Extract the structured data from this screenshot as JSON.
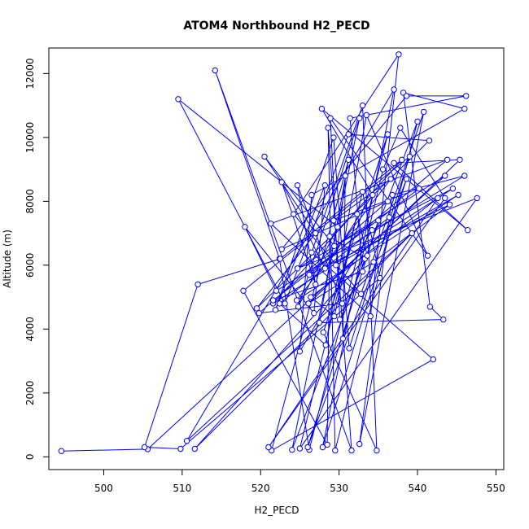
{
  "chart_data": {
    "type": "scatter",
    "title": "ATOM4 Northbound H2_PECD",
    "xlabel": "H2_PECD",
    "ylabel": "Altitude (m)",
    "xlim": [
      493,
      551
    ],
    "ylim": [
      -400,
      12800
    ],
    "x_ticks": [
      500,
      510,
      520,
      530,
      540,
      550
    ],
    "y_ticks": [
      0,
      2000,
      4000,
      6000,
      8000,
      10000,
      12000
    ],
    "grid": false,
    "legend": "none",
    "series": [
      {
        "color": "#0000ff",
        "marker": "open-circle",
        "connected": true,
        "points": [
          [
            494.6,
            180
          ],
          [
            505.6,
            240
          ],
          [
            543.5,
            8800
          ],
          [
            529.4,
            6600
          ],
          [
            520.5,
            9400
          ],
          [
            527.0,
            7000
          ],
          [
            519.5,
            4650
          ],
          [
            541.5,
            9900
          ],
          [
            531.2,
            10100
          ],
          [
            523.1,
            4800
          ],
          [
            509.5,
            11200
          ],
          [
            529.8,
            7200
          ],
          [
            524.8,
            4700
          ],
          [
            532.6,
            10600
          ],
          [
            524.0,
            220
          ],
          [
            540.0,
            10500
          ],
          [
            529.5,
            200
          ],
          [
            528.6,
            10300
          ],
          [
            531.6,
            200
          ],
          [
            514.2,
            12100
          ],
          [
            522.4,
            6200
          ],
          [
            526.2,
            220
          ],
          [
            536.2,
            10100
          ],
          [
            528.0,
            3900
          ],
          [
            534.8,
            200
          ],
          [
            533.0,
            11000
          ],
          [
            526.5,
            6400
          ],
          [
            542.0,
            3050
          ],
          [
            521.4,
            200
          ],
          [
            531.2,
            9300
          ],
          [
            527.5,
            4200
          ],
          [
            543.3,
            4300
          ],
          [
            541.6,
            4700
          ],
          [
            538.2,
            11400
          ],
          [
            546.0,
            10900
          ],
          [
            526.5,
            8200
          ],
          [
            525.0,
            3300
          ],
          [
            534.2,
            7100
          ],
          [
            544.5,
            8400
          ],
          [
            521.6,
            4800
          ],
          [
            538.0,
            9300
          ],
          [
            522.5,
            6200
          ],
          [
            512.0,
            5400
          ],
          [
            505.2,
            300
          ],
          [
            509.8,
            250
          ],
          [
            535.2,
            5600
          ],
          [
            533.0,
            8300
          ],
          [
            525.0,
            260
          ],
          [
            547.6,
            8100
          ],
          [
            524.7,
            5900
          ],
          [
            535.0,
            7400
          ],
          [
            526.0,
            300
          ],
          [
            538.6,
            8700
          ],
          [
            527.9,
            300
          ],
          [
            537.0,
            11500
          ],
          [
            510.6,
            500
          ],
          [
            539.3,
            7000
          ],
          [
            511.6,
            250
          ],
          [
            533.3,
            6200
          ],
          [
            528.8,
            6900
          ],
          [
            528.5,
            380
          ],
          [
            517.8,
            5200
          ],
          [
            539.0,
            9400
          ],
          [
            531.3,
            3400
          ],
          [
            529.3,
            10000
          ],
          [
            521.9,
            4600
          ],
          [
            528.2,
            8500
          ],
          [
            526.8,
            4500
          ],
          [
            518.0,
            7200
          ],
          [
            522.0,
            5200
          ],
          [
            546.0,
            8800
          ],
          [
            536.8,
            8200
          ],
          [
            532.6,
            400
          ],
          [
            540.8,
            10800
          ],
          [
            532.8,
            5100
          ],
          [
            524.2,
            7600
          ],
          [
            537.6,
            12600
          ],
          [
            534.0,
            4400
          ],
          [
            521.3,
            7300
          ],
          [
            543.8,
            9300
          ],
          [
            526.2,
            5700
          ],
          [
            544.1,
            7900
          ],
          [
            534.4,
            6100
          ],
          [
            526.1,
            4800
          ],
          [
            545.4,
            9300
          ],
          [
            537.0,
            9200
          ],
          [
            546.4,
            7100
          ],
          [
            527.8,
            10900
          ],
          [
            534.3,
            8200
          ],
          [
            528.2,
            5900
          ],
          [
            522.7,
            8600
          ],
          [
            527.0,
            5400
          ],
          [
            524.7,
            8500
          ],
          [
            530.4,
            4800
          ],
          [
            519.8,
            4500
          ],
          [
            536.2,
            8000
          ],
          [
            522.7,
            6500
          ],
          [
            538.6,
            11300
          ],
          [
            546.2,
            11300
          ],
          [
            531.4,
            10600
          ],
          [
            533.0,
            5800
          ],
          [
            521.6,
            4900
          ],
          [
            540.2,
            8400
          ],
          [
            529.3,
            7400
          ],
          [
            536.6,
            8700
          ],
          [
            524.6,
            4900
          ],
          [
            545.2,
            8200
          ],
          [
            529.6,
            6000
          ],
          [
            530.8,
            8800
          ],
          [
            530.5,
            3700
          ],
          [
            535.6,
            9000
          ],
          [
            537.8,
            10300
          ],
          [
            543.5,
            8100
          ],
          [
            521.0,
            300
          ],
          [
            542.6,
            8100
          ],
          [
            526.4,
            5000
          ],
          [
            529.4,
            4400
          ],
          [
            532.3,
            7600
          ],
          [
            533.6,
            6300
          ],
          [
            530.1,
            4300
          ],
          [
            528.9,
            10600
          ],
          [
            541.3,
            6300
          ],
          [
            533.5,
            10700
          ],
          [
            528.3,
            3500
          ],
          [
            522.4,
            4800
          ],
          [
            536.4,
            7500
          ]
        ]
      }
    ]
  }
}
